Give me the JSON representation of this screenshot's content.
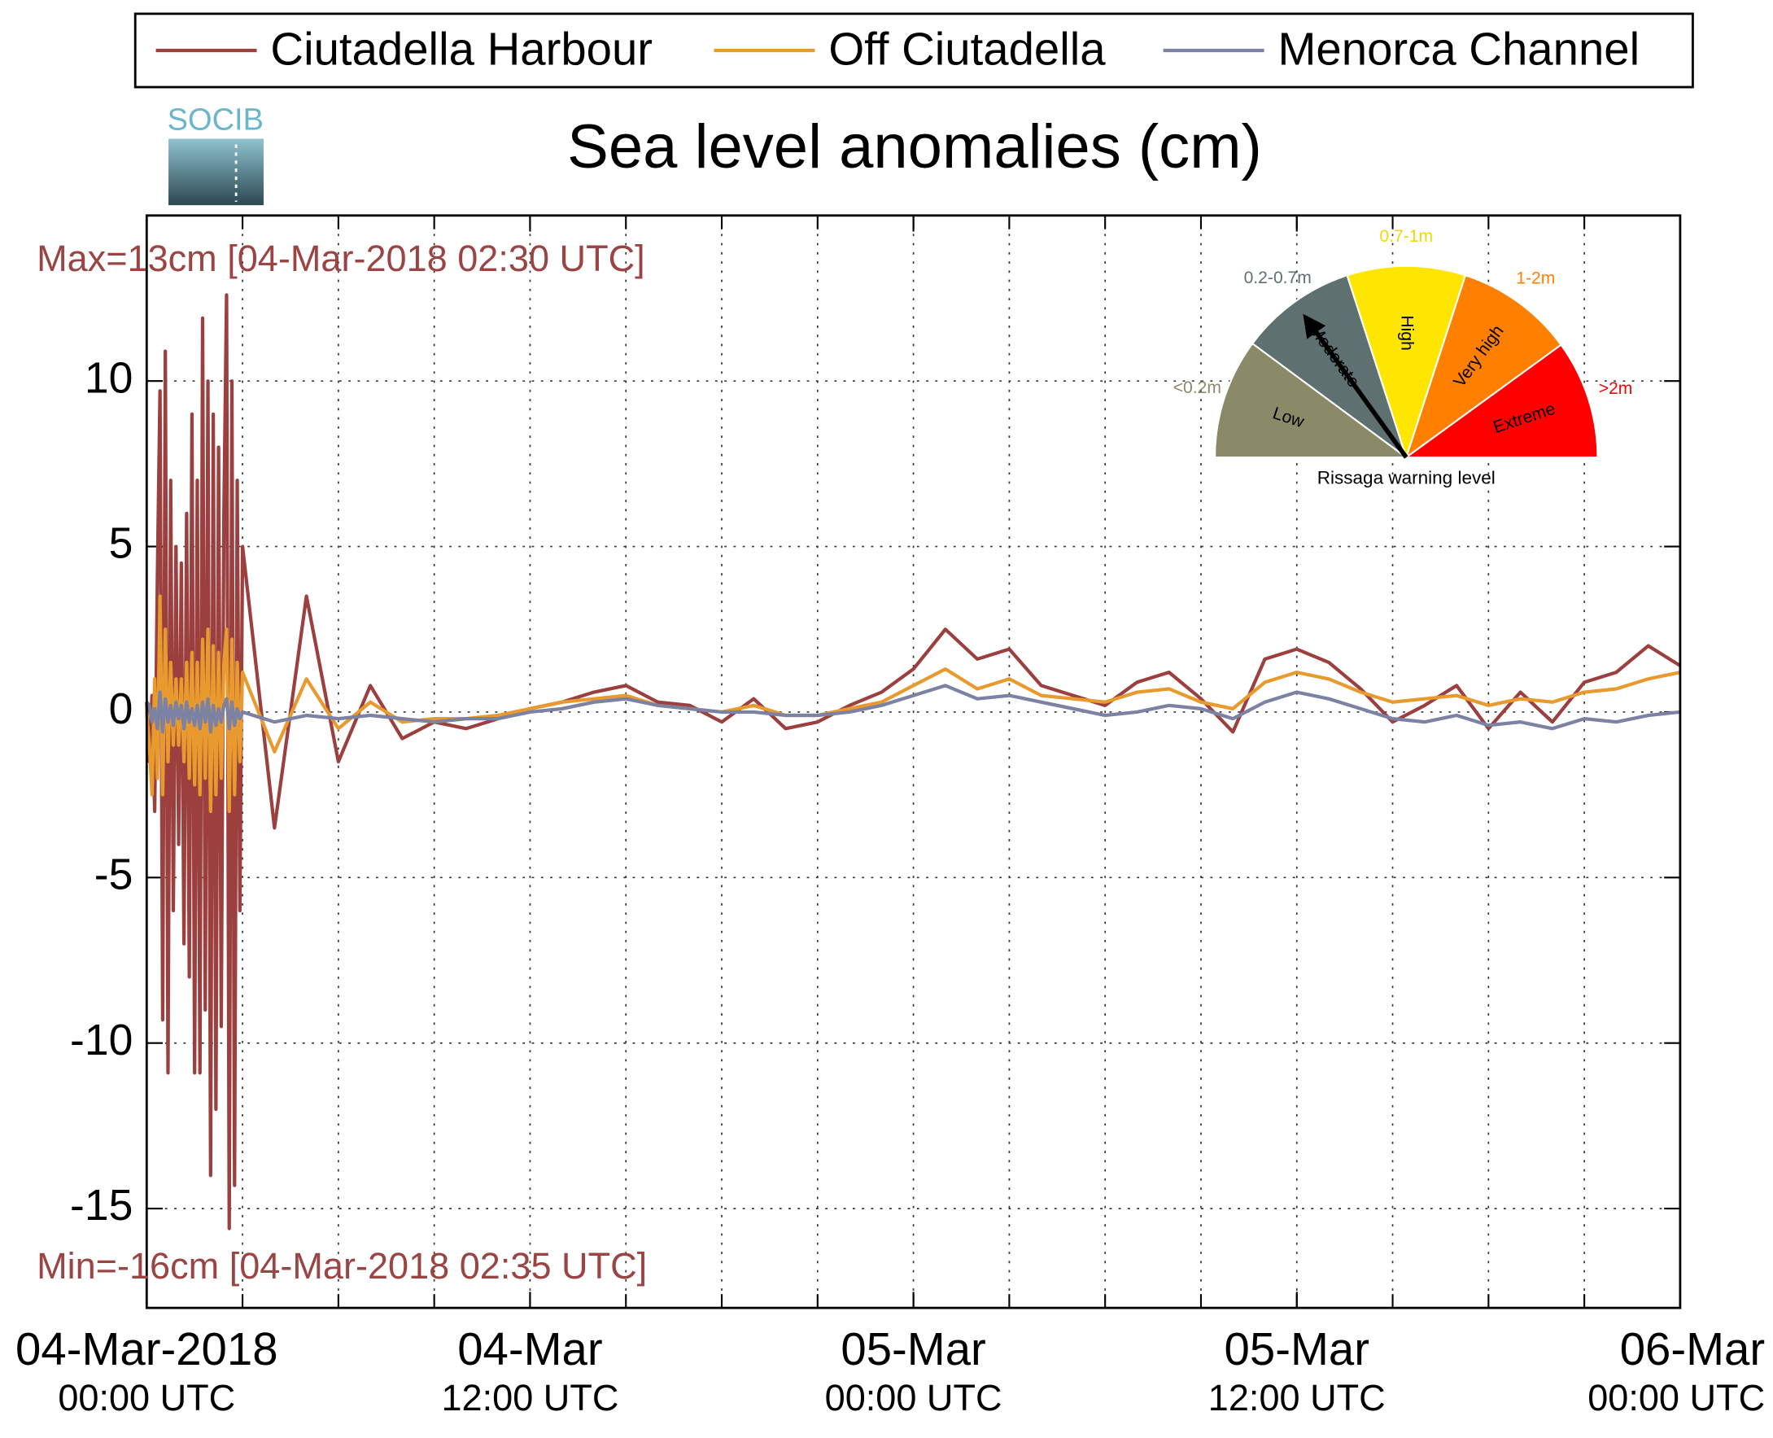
{
  "chart_data": {
    "type": "line",
    "title": "Sea level anomalies (cm)",
    "logo": "SOCIB",
    "annotations": [
      "Max=13cm [04-Mar-2018 02:30 UTC]",
      "Min=-16cm [04-Mar-2018 02:35 UTC]"
    ],
    "annotation_color": "#9b4444",
    "grid": true,
    "legend": "top",
    "x": [
      "2018-03-04T00:00",
      "2018-03-04T00:05",
      "2018-03-04T00:10",
      "2018-03-04T00:15",
      "2018-03-04T00:20",
      "2018-03-04T00:25",
      "2018-03-04T00:30",
      "2018-03-04T00:35",
      "2018-03-04T00:40",
      "2018-03-04T00:45",
      "2018-03-04T00:50",
      "2018-03-04T00:55",
      "2018-03-04T01:00",
      "2018-03-04T01:05",
      "2018-03-04T01:10",
      "2018-03-04T01:15",
      "2018-03-04T01:20",
      "2018-03-04T01:25",
      "2018-03-04T01:30",
      "2018-03-04T01:35",
      "2018-03-04T01:40",
      "2018-03-04T01:45",
      "2018-03-04T01:50",
      "2018-03-04T01:55",
      "2018-03-04T02:00",
      "2018-03-04T02:05",
      "2018-03-04T02:10",
      "2018-03-04T02:15",
      "2018-03-04T02:20",
      "2018-03-04T02:25",
      "2018-03-04T02:30",
      "2018-03-04T02:35",
      "2018-03-04T02:40",
      "2018-03-04T02:45",
      "2018-03-04T02:50",
      "2018-03-04T02:55",
      "2018-03-04T03:00",
      "2018-03-04T04:00",
      "2018-03-04T05:00",
      "2018-03-04T06:00",
      "2018-03-04T07:00",
      "2018-03-04T08:00",
      "2018-03-04T09:00",
      "2018-03-04T10:00",
      "2018-03-04T11:00",
      "2018-03-04T12:00",
      "2018-03-04T13:00",
      "2018-03-04T14:00",
      "2018-03-04T15:00",
      "2018-03-04T16:00",
      "2018-03-04T17:00",
      "2018-03-04T18:00",
      "2018-03-04T19:00",
      "2018-03-04T20:00",
      "2018-03-04T21:00",
      "2018-03-04T22:00",
      "2018-03-04T23:00",
      "2018-03-05T00:00",
      "2018-03-05T01:00",
      "2018-03-05T02:00",
      "2018-03-05T03:00",
      "2018-03-05T04:00",
      "2018-03-05T05:00",
      "2018-03-05T06:00",
      "2018-03-05T07:00",
      "2018-03-05T08:00",
      "2018-03-05T09:00",
      "2018-03-05T10:00",
      "2018-03-05T11:00",
      "2018-03-05T12:00",
      "2018-03-05T13:00",
      "2018-03-05T14:00",
      "2018-03-05T15:00",
      "2018-03-05T16:00",
      "2018-03-05T17:00",
      "2018-03-05T18:00",
      "2018-03-05T19:00",
      "2018-03-05T20:00",
      "2018-03-05T21:00",
      "2018-03-05T22:00",
      "2018-03-05T23:00",
      "2018-03-06T00:00"
    ],
    "series": [
      {
        "name": "Ciutadella Harbour",
        "color": "#9b3f3f",
        "values": [
          0.3,
          -1.5,
          0.5,
          -3,
          4,
          9.7,
          -9.3,
          10.9,
          -10.9,
          7,
          -6,
          5,
          -4,
          4.5,
          -7,
          6,
          -8,
          9,
          -10.9,
          7,
          -10.9,
          11.9,
          -9,
          10,
          -14,
          9,
          -12,
          8,
          -9.5,
          6,
          12.6,
          -15.6,
          10,
          -14.3,
          7,
          -6,
          5,
          -3.5,
          3.5,
          -1.5,
          0.8,
          -0.8,
          -0.3,
          -0.5,
          -0.2,
          0.1,
          0.3,
          0.6,
          0.8,
          0.3,
          0.2,
          -0.3,
          0.4,
          -0.5,
          -0.3,
          0.2,
          0.6,
          1.3,
          2.5,
          1.6,
          1.9,
          0.8,
          0.5,
          0.2,
          0.9,
          1.2,
          0.4,
          -0.6,
          1.6,
          1.9,
          1.5,
          0.7,
          -0.3,
          0.2,
          0.8,
          -0.5,
          0.6,
          -0.3,
          0.9,
          1.2,
          2.0,
          1.4
        ]
      },
      {
        "name": "Off Ciutadella",
        "color": "#e89a2e",
        "values": [
          0,
          -1,
          -2.5,
          1,
          -2,
          3.5,
          -2.5,
          2.5,
          -1.5,
          1.5,
          -1,
          1,
          -1,
          1,
          -1.5,
          1.5,
          -2,
          1.8,
          -2.2,
          1.5,
          -2.5,
          2.2,
          -2,
          2.5,
          -3,
          2,
          -2.5,
          1.8,
          -2,
          1.5,
          2.5,
          -3,
          2.2,
          -2.5,
          1.5,
          -1.5,
          1.2,
          -1.2,
          1,
          -0.5,
          0.3,
          -0.3,
          -0.2,
          -0.2,
          -0.1,
          0.1,
          0.3,
          0.4,
          0.5,
          0.2,
          0.1,
          0.0,
          0.2,
          -0.1,
          -0.1,
          0.1,
          0.3,
          0.8,
          1.3,
          0.7,
          1.0,
          0.5,
          0.4,
          0.3,
          0.6,
          0.7,
          0.3,
          0.1,
          0.9,
          1.2,
          1.0,
          0.6,
          0.3,
          0.4,
          0.5,
          0.2,
          0.4,
          0.3,
          0.6,
          0.7,
          1.0,
          1.2
        ]
      },
      {
        "name": "Menorca Channel",
        "color": "#7b82a3",
        "values": [
          0.3,
          0.2,
          -0.3,
          0.1,
          -0.5,
          0.6,
          -0.6,
          0.4,
          -0.3,
          0.2,
          -0.4,
          0.3,
          -0.2,
          0.2,
          -0.5,
          0.3,
          -0.3,
          0.1,
          -0.4,
          0.2,
          -0.5,
          0.3,
          -0.3,
          0.4,
          -0.6,
          0.2,
          -0.4,
          0.1,
          -0.3,
          0.2,
          0.4,
          -0.5,
          0.3,
          -0.4,
          0.1,
          -0.2,
          0.0,
          -0.3,
          -0.1,
          -0.2,
          -0.1,
          -0.2,
          -0.3,
          -0.2,
          -0.2,
          0.0,
          0.1,
          0.3,
          0.4,
          0.2,
          0.1,
          0.0,
          0.0,
          -0.1,
          -0.1,
          0.0,
          0.2,
          0.5,
          0.8,
          0.4,
          0.5,
          0.3,
          0.1,
          -0.1,
          0.0,
          0.2,
          0.1,
          -0.2,
          0.3,
          0.6,
          0.4,
          0.1,
          -0.2,
          -0.3,
          -0.1,
          -0.4,
          -0.3,
          -0.5,
          -0.2,
          -0.3,
          -0.1,
          0.0
        ]
      }
    ],
    "xlim": [
      "2018-03-04T00:00",
      "2018-03-06T00:00"
    ],
    "xticks": [
      {
        "value": "2018-03-04T00:00",
        "label": [
          "04-Mar-2018",
          "00:00 UTC"
        ]
      },
      {
        "value": "2018-03-04T12:00",
        "label": [
          "04-Mar",
          "12:00 UTC"
        ]
      },
      {
        "value": "2018-03-05T00:00",
        "label": [
          "05-Mar",
          "00:00 UTC"
        ]
      },
      {
        "value": "2018-03-05T12:00",
        "label": [
          "05-Mar",
          "12:00 UTC"
        ]
      },
      {
        "value": "2018-03-06T00:00",
        "label": [
          "06-Mar",
          "00:00 UTC"
        ]
      }
    ],
    "x_minor_ticks": [
      "2018-03-04T03:00",
      "2018-03-04T06:00",
      "2018-03-04T09:00",
      "2018-03-04T12:00",
      "2018-03-04T15:00",
      "2018-03-04T18:00",
      "2018-03-04T21:00",
      "2018-03-05T00:00",
      "2018-03-05T03:00",
      "2018-03-05T06:00",
      "2018-03-05T09:00",
      "2018-03-05T12:00",
      "2018-03-05T15:00",
      "2018-03-05T18:00",
      "2018-03-05T21:00"
    ],
    "ylim": [
      -18,
      15
    ],
    "yticks": [
      -15,
      -10,
      -5,
      0,
      5,
      10
    ],
    "inset": {
      "title": "Rissaga warning level",
      "active_level": 1,
      "levels": [
        {
          "name": "Low",
          "range": "<0.2m",
          "color": "#8a8a68",
          "range_color": "#8a8a68"
        },
        {
          "name": "Moderate",
          "range": "0.2-0.7m",
          "color": "#5e7070",
          "range_color": "#5e7070"
        },
        {
          "name": "High",
          "range": "0.7-1m",
          "color": "#ffe600",
          "range_color": "#f2d800"
        },
        {
          "name": "Very high",
          "range": "1-2m",
          "color": "#ff8000",
          "range_color": "#ff8000"
        },
        {
          "name": "Extreme",
          "range": ">2m",
          "color": "#ff0000",
          "range_color": "#ff0000"
        }
      ]
    }
  }
}
